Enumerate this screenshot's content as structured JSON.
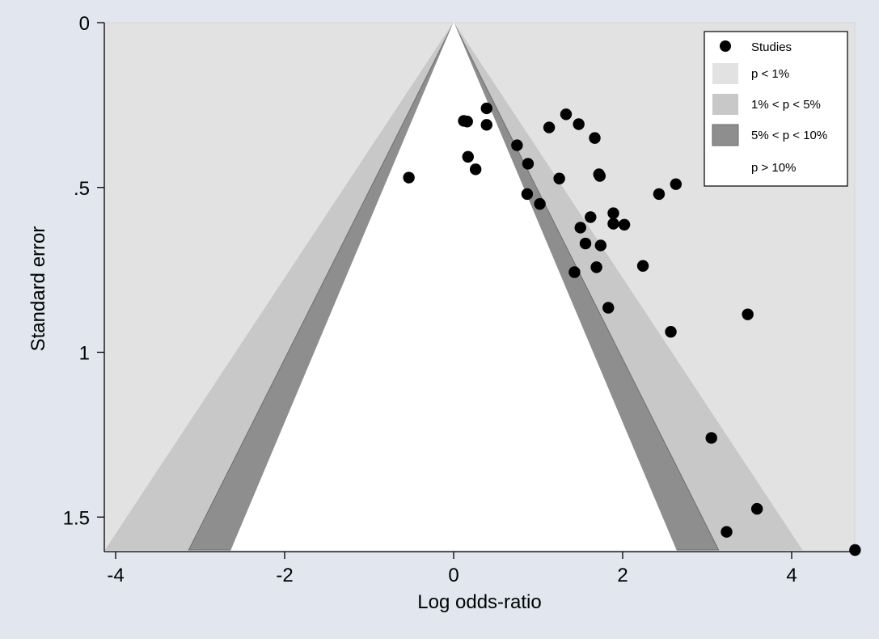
{
  "chart_data": {
    "type": "scatter",
    "title": "",
    "xlabel": "Log odds-ratio",
    "ylabel": "Standard error",
    "xlim": [
      -4.2,
      4.7
    ],
    "ylim": [
      0,
      1.6
    ],
    "y_reversed": true,
    "x_ticks": [
      {
        "value": -4,
        "label": "-4"
      },
      {
        "value": -2,
        "label": "-2"
      },
      {
        "value": 0,
        "label": "0"
      },
      {
        "value": 2,
        "label": "2"
      },
      {
        "value": 4,
        "label": "4"
      }
    ],
    "y_ticks": [
      {
        "value": 0,
        "label": "0"
      },
      {
        "value": 0.5,
        "label": ".5"
      },
      {
        "value": 1,
        "label": "1"
      },
      {
        "value": 1.5,
        "label": "1.5"
      }
    ],
    "grid": false,
    "legend_position": "top-right",
    "contour_regions": [
      {
        "label": "p < 1%",
        "color": "#e2e2e2",
        "z": null
      },
      {
        "label": "1% < p < 5%",
        "color": "#c8c8c8",
        "z": 2.576
      },
      {
        "label": "5% < p < 10%",
        "color": "#8e8e8e",
        "z": 1.96
      },
      {
        "label": "p > 10%",
        "color": "#ffffff",
        "z": 1.645
      }
    ],
    "series": [
      {
        "name": "Studies",
        "color": "#000000",
        "points": [
          {
            "x": -0.53,
            "y": 0.47
          },
          {
            "x": 0.12,
            "y": 0.298
          },
          {
            "x": 0.16,
            "y": 0.3
          },
          {
            "x": 0.39,
            "y": 0.26
          },
          {
            "x": 0.39,
            "y": 0.31
          },
          {
            "x": 0.17,
            "y": 0.407
          },
          {
            "x": 0.26,
            "y": 0.445
          },
          {
            "x": 0.75,
            "y": 0.372
          },
          {
            "x": 0.88,
            "y": 0.428
          },
          {
            "x": 0.87,
            "y": 0.52
          },
          {
            "x": 1.02,
            "y": 0.55
          },
          {
            "x": 1.13,
            "y": 0.318
          },
          {
            "x": 1.25,
            "y": 0.473
          },
          {
            "x": 1.33,
            "y": 0.278
          },
          {
            "x": 1.48,
            "y": 0.308
          },
          {
            "x": 1.67,
            "y": 0.35
          },
          {
            "x": 1.72,
            "y": 0.46
          },
          {
            "x": 1.73,
            "y": 0.465
          },
          {
            "x": 1.5,
            "y": 0.622
          },
          {
            "x": 1.62,
            "y": 0.59
          },
          {
            "x": 1.56,
            "y": 0.67
          },
          {
            "x": 1.74,
            "y": 0.676
          },
          {
            "x": 1.89,
            "y": 0.578
          },
          {
            "x": 1.89,
            "y": 0.61
          },
          {
            "x": 2.02,
            "y": 0.613
          },
          {
            "x": 1.43,
            "y": 0.757
          },
          {
            "x": 1.69,
            "y": 0.742
          },
          {
            "x": 1.83,
            "y": 0.865
          },
          {
            "x": 2.24,
            "y": 0.738
          },
          {
            "x": 2.43,
            "y": 0.52
          },
          {
            "x": 2.63,
            "y": 0.49
          },
          {
            "x": 2.57,
            "y": 0.938
          },
          {
            "x": 3.48,
            "y": 0.885
          },
          {
            "x": 3.05,
            "y": 1.26
          },
          {
            "x": 3.59,
            "y": 1.475
          },
          {
            "x": 3.23,
            "y": 1.545
          },
          {
            "x": 4.75,
            "y": 1.6
          }
        ]
      }
    ]
  }
}
